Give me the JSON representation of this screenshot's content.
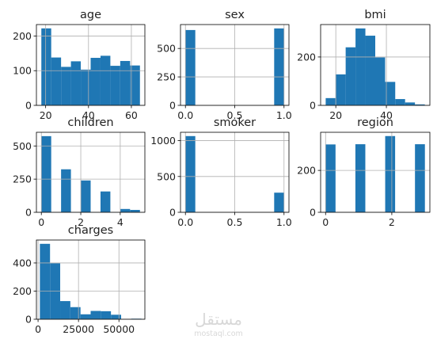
{
  "chart_data": [
    {
      "type": "bar",
      "title": "age",
      "bins": [
        {
          "x0": 18.0,
          "x1": 22.6,
          "value": 222
        },
        {
          "x0": 22.6,
          "x1": 27.2,
          "value": 138
        },
        {
          "x0": 27.2,
          "x1": 31.8,
          "value": 111
        },
        {
          "x0": 31.8,
          "x1": 36.4,
          "value": 127
        },
        {
          "x0": 36.4,
          "x1": 41.0,
          "value": 103
        },
        {
          "x0": 41.0,
          "x1": 45.6,
          "value": 137
        },
        {
          "x0": 45.6,
          "x1": 50.2,
          "value": 143
        },
        {
          "x0": 50.2,
          "x1": 54.8,
          "value": 114
        },
        {
          "x0": 54.8,
          "x1": 59.4,
          "value": 128
        },
        {
          "x0": 59.4,
          "x1": 64.0,
          "value": 115
        }
      ],
      "xlim": [
        15.7,
        66.3
      ],
      "ylim": [
        0,
        233
      ],
      "xticks": [
        20,
        40,
        60
      ],
      "yticks": [
        0,
        100,
        200
      ],
      "grid": true
    },
    {
      "type": "bar",
      "title": "sex",
      "bins": [
        {
          "x0": 0.0,
          "x1": 0.1,
          "value": 662
        },
        {
          "x0": 0.9,
          "x1": 1.0,
          "value": 676
        }
      ],
      "xlim": [
        -0.05,
        1.05
      ],
      "ylim": [
        0,
        710
      ],
      "xticks": [
        0.0,
        0.5,
        1.0
      ],
      "yticks": [
        0,
        250,
        500
      ],
      "grid": true
    },
    {
      "type": "bar",
      "title": "bmi",
      "bins": [
        {
          "x0": 16.0,
          "x1": 19.9,
          "value": 30
        },
        {
          "x0": 19.9,
          "x1": 23.9,
          "value": 128
        },
        {
          "x0": 23.9,
          "x1": 27.8,
          "value": 240
        },
        {
          "x0": 27.8,
          "x1": 31.7,
          "value": 318
        },
        {
          "x0": 31.7,
          "x1": 35.6,
          "value": 288
        },
        {
          "x0": 35.6,
          "x1": 39.5,
          "value": 198
        },
        {
          "x0": 39.5,
          "x1": 43.5,
          "value": 97
        },
        {
          "x0": 43.5,
          "x1": 47.4,
          "value": 26
        },
        {
          "x0": 47.4,
          "x1": 51.3,
          "value": 12
        },
        {
          "x0": 51.3,
          "x1": 55.2,
          "value": 4
        }
      ],
      "xlim": [
        14.0,
        57.2
      ],
      "ylim": [
        0,
        334
      ],
      "xticks": [
        20,
        40
      ],
      "yticks": [
        0,
        200
      ],
      "grid": true
    },
    {
      "type": "bar",
      "title": "children",
      "bins": [
        {
          "x0": 0.0,
          "x1": 0.5,
          "value": 574
        },
        {
          "x0": 1.0,
          "x1": 1.5,
          "value": 324
        },
        {
          "x0": 2.0,
          "x1": 2.5,
          "value": 240
        },
        {
          "x0": 3.0,
          "x1": 3.5,
          "value": 157
        },
        {
          "x0": 4.0,
          "x1": 4.5,
          "value": 25
        },
        {
          "x0": 4.5,
          "x1": 5.0,
          "value": 18
        }
      ],
      "xlim": [
        -0.25,
        5.25
      ],
      "ylim": [
        0,
        603
      ],
      "xticks": [
        0,
        2,
        4
      ],
      "yticks": [
        0,
        250,
        500
      ],
      "grid": true
    },
    {
      "type": "bar",
      "title": "smoker",
      "bins": [
        {
          "x0": 0.0,
          "x1": 0.1,
          "value": 1064
        },
        {
          "x0": 0.9,
          "x1": 1.0,
          "value": 274
        }
      ],
      "xlim": [
        -0.05,
        1.05
      ],
      "ylim": [
        0,
        1117
      ],
      "xticks": [
        0.0,
        0.5,
        1.0
      ],
      "yticks": [
        0,
        500,
        1000
      ],
      "grid": true
    },
    {
      "type": "bar",
      "title": "region",
      "bins": [
        {
          "x0": 0.0,
          "x1": 0.3,
          "value": 324
        },
        {
          "x0": 0.9,
          "x1": 1.2,
          "value": 325
        },
        {
          "x0": 1.8,
          "x1": 2.1,
          "value": 364
        },
        {
          "x0": 2.7,
          "x1": 3.0,
          "value": 325
        }
      ],
      "xlim": [
        -0.15,
        3.15
      ],
      "ylim": [
        0,
        382
      ],
      "xticks": [
        0,
        2
      ],
      "yticks": [
        0,
        200
      ],
      "grid": true
    },
    {
      "type": "bar",
      "title": "charges",
      "bins": [
        {
          "x0": 1122,
          "x1": 7399,
          "value": 536
        },
        {
          "x0": 7399,
          "x1": 13676,
          "value": 398
        },
        {
          "x0": 13676,
          "x1": 19954,
          "value": 129
        },
        {
          "x0": 19954,
          "x1": 26231,
          "value": 86
        },
        {
          "x0": 26231,
          "x1": 32508,
          "value": 35
        },
        {
          "x0": 32508,
          "x1": 38785,
          "value": 59
        },
        {
          "x0": 38785,
          "x1": 45062,
          "value": 57
        },
        {
          "x0": 45062,
          "x1": 51340,
          "value": 32
        },
        {
          "x0": 51340,
          "x1": 57617,
          "value": 2
        },
        {
          "x0": 57617,
          "x1": 63894,
          "value": 4
        }
      ],
      "xlim": [
        -1016,
        66033
      ],
      "ylim": [
        0,
        563
      ],
      "xticks": [
        0,
        25000,
        50000
      ],
      "yticks": [
        0,
        200,
        400
      ],
      "grid": true
    }
  ],
  "colors": {
    "bar_fill": "#1f77b4",
    "grid": "#b0b0b0",
    "axis": "#000000",
    "text": "#222222",
    "watermark": "#d8d8d8"
  },
  "watermark": {
    "main_text": "مستقل",
    "sub_text": "mostaql.com"
  }
}
